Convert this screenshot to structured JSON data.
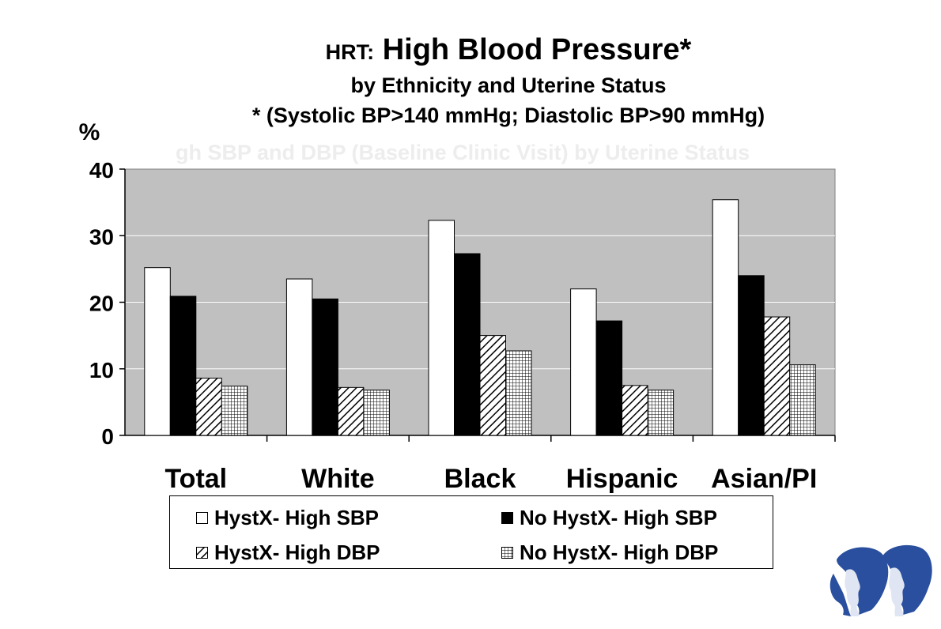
{
  "title": {
    "prefix": "HRT:",
    "main": "High Blood Pressure*",
    "line2": "by Ethnicity and Uterine Status",
    "line3": "* (Systolic BP>140 mmHg; Diastolic BP>90 mmHg)"
  },
  "watermark_text": "gh SBP and DBP (Baseline Clinic Visit) by Uterine Status",
  "chart_data": {
    "type": "bar",
    "ylabel": "%",
    "ylim": [
      0,
      40
    ],
    "yticks": [
      "0",
      "10",
      "20",
      "30",
      "40"
    ],
    "grid": true,
    "plot_background": "#c0c0c0",
    "legend_position": "bottom",
    "categories": [
      "Total",
      "White",
      "Black",
      "Hispanic",
      "Asian/PI"
    ],
    "series": [
      {
        "name": "HystX- High SBP",
        "pattern": "solid-white",
        "values": [
          25.2,
          23.5,
          32.3,
          22.0,
          35.4
        ]
      },
      {
        "name": "No HystX- High SBP",
        "pattern": "solid-black",
        "values": [
          20.9,
          20.5,
          27.3,
          17.2,
          24.0
        ]
      },
      {
        "name": "HystX- High DBP",
        "pattern": "diagonal-hatch",
        "values": [
          8.6,
          7.2,
          15.0,
          7.5,
          17.8
        ]
      },
      {
        "name": "No HystX- High DBP",
        "pattern": "grid-hatch",
        "values": [
          7.4,
          6.8,
          12.7,
          6.8,
          10.6
        ]
      }
    ]
  },
  "logo_icon": "two-profile-heads-logo",
  "colors": {
    "plot_bg": "#c0c0c0",
    "logo_blue": "#2a4f9e"
  }
}
